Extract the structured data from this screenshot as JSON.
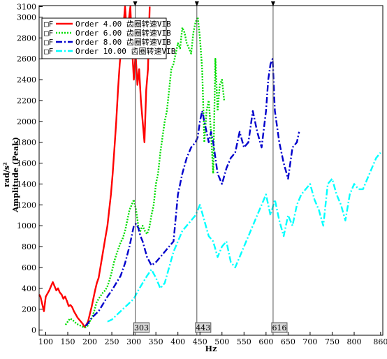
{
  "chart_data": {
    "type": "line",
    "title": "",
    "xlabel": "Hz",
    "ylabel": "Amplitude (Peak)",
    "ylabel_unit": "rad/s²",
    "xlim": [
      85,
      865
    ],
    "ylim": [
      -50,
      3110
    ],
    "x_ticks": [
      100,
      150,
      200,
      250,
      300,
      350,
      400,
      450,
      500,
      550,
      600,
      650,
      700,
      750,
      800,
      860
    ],
    "y_ticks": [
      0,
      200,
      400,
      600,
      800,
      1000,
      1200,
      1400,
      1600,
      1800,
      2000,
      2200,
      2400,
      2600,
      2800,
      3000,
      3100
    ],
    "grid": false,
    "legend_position": "top-left",
    "cursors": [
      {
        "x": 303,
        "label": "303"
      },
      {
        "x": 443,
        "label": "443"
      },
      {
        "x": 616,
        "label": "616"
      }
    ],
    "series": [
      {
        "name": "Order 4.00 齿圈转速VIB",
        "legend_prefix": "□F",
        "color": "#ff0000",
        "dash": "solid",
        "x": [
          85,
          88,
          92,
          96,
          100,
          104,
          108,
          112,
          116,
          120,
          124,
          128,
          132,
          136,
          140,
          144,
          148,
          152,
          156,
          160,
          164,
          168,
          172,
          176,
          180,
          184,
          188,
          192,
          196,
          200,
          204,
          208,
          212,
          216,
          220,
          224,
          228,
          232,
          236,
          240,
          244,
          248,
          252,
          256,
          260,
          264,
          268,
          272,
          276,
          280,
          284,
          288,
          292,
          296,
          300,
          304,
          308,
          312,
          316,
          320,
          324,
          328,
          332,
          336
        ],
        "y": [
          340,
          320,
          250,
          180,
          320,
          350,
          380,
          420,
          460,
          420,
          380,
          400,
          360,
          340,
          300,
          320,
          280,
          230,
          240,
          220,
          180,
          150,
          120,
          100,
          80,
          60,
          30,
          50,
          80,
          150,
          220,
          300,
          380,
          450,
          500,
          600,
          700,
          800,
          900,
          1000,
          1150,
          1300,
          1500,
          1750,
          2000,
          2300,
          2550,
          2750,
          2900,
          3100,
          2850,
          2950,
          3100,
          2700,
          2400,
          2650,
          2350,
          2500,
          2200,
          2000,
          1800,
          2300,
          2500,
          3100
        ]
      },
      {
        "name": "Order 6.00 齿圈转速VIB",
        "legend_prefix": "□F",
        "color": "#00dd00",
        "dash": "dotted",
        "x": [
          145,
          150,
          155,
          160,
          165,
          170,
          175,
          180,
          185,
          190,
          195,
          200,
          205,
          210,
          215,
          220,
          225,
          230,
          235,
          240,
          245,
          250,
          255,
          260,
          265,
          270,
          275,
          280,
          285,
          290,
          295,
          300,
          305,
          310,
          315,
          320,
          325,
          330,
          335,
          340,
          345,
          350,
          355,
          360,
          365,
          370,
          375,
          380,
          385,
          390,
          395,
          400,
          405,
          410,
          415,
          420,
          425,
          430,
          435,
          440,
          445,
          450,
          455,
          460,
          465,
          470,
          475,
          480,
          485,
          490,
          495,
          500,
          505
        ],
        "y": [
          50,
          80,
          110,
          100,
          80,
          60,
          50,
          40,
          30,
          25,
          40,
          80,
          120,
          180,
          260,
          300,
          330,
          360,
          380,
          420,
          480,
          560,
          650,
          720,
          780,
          840,
          880,
          950,
          1050,
          1150,
          1200,
          1250,
          1150,
          1000,
          950,
          1000,
          950,
          920,
          980,
          1100,
          1200,
          1400,
          1500,
          1700,
          1850,
          2000,
          2100,
          2300,
          2500,
          2550,
          2650,
          2750,
          2700,
          2900,
          2850,
          2750,
          2700,
          2650,
          2850,
          2950,
          3000,
          2800,
          2500,
          1800,
          2100,
          2200,
          1900,
          1500,
          2600,
          2100,
          2350,
          2400,
          2200
        ]
      },
      {
        "name": "Order 8.00 齿圈转速VIB",
        "legend_prefix": "□F",
        "color": "#0000cc",
        "dash": "dashdot",
        "x": [
          190,
          195,
          200,
          205,
          210,
          220,
          230,
          240,
          250,
          260,
          270,
          280,
          290,
          295,
          300,
          305,
          310,
          315,
          320,
          330,
          340,
          350,
          360,
          370,
          380,
          390,
          400,
          410,
          420,
          430,
          440,
          445,
          450,
          455,
          460,
          470,
          475,
          480,
          490,
          500,
          510,
          520,
          530,
          540,
          550,
          560,
          570,
          580,
          590,
          600,
          605,
          610,
          615,
          620,
          630,
          640,
          650,
          660,
          670,
          675
        ],
        "y": [
          40,
          60,
          90,
          120,
          140,
          180,
          250,
          320,
          380,
          450,
          520,
          640,
          800,
          900,
          1000,
          1020,
          980,
          900,
          850,
          700,
          620,
          650,
          700,
          750,
          800,
          850,
          1300,
          1500,
          1650,
          1750,
          1800,
          1850,
          2000,
          2100,
          2000,
          1800,
          1900,
          1800,
          1500,
          1400,
          1550,
          1650,
          1700,
          1900,
          1750,
          1800,
          2100,
          1900,
          1750,
          2100,
          2400,
          2550,
          2600,
          2100,
          1800,
          1600,
          1450,
          1750,
          1800,
          1900
        ]
      },
      {
        "name": "Order 10.00 齿圈转速VIB",
        "legend_prefix": "□F",
        "color": "#00ffff",
        "dash": "dashdot",
        "x": [
          240,
          250,
          260,
          270,
          280,
          290,
          300,
          310,
          320,
          330,
          340,
          350,
          360,
          370,
          380,
          390,
          400,
          410,
          420,
          430,
          440,
          445,
          450,
          460,
          470,
          480,
          490,
          500,
          510,
          520,
          530,
          540,
          550,
          560,
          570,
          580,
          590,
          600,
          610,
          620,
          630,
          640,
          650,
          660,
          670,
          680,
          690,
          700,
          710,
          720,
          730,
          740,
          750,
          760,
          770,
          780,
          790,
          800,
          810,
          820,
          830,
          840,
          850,
          860
        ],
        "y": [
          80,
          100,
          140,
          180,
          220,
          260,
          300,
          380,
          450,
          520,
          580,
          500,
          400,
          450,
          600,
          750,
          850,
          950,
          1000,
          1050,
          1100,
          1150,
          1200,
          1050,
          900,
          850,
          700,
          800,
          850,
          650,
          600,
          700,
          800,
          900,
          1000,
          1100,
          1200,
          1300,
          1100,
          1250,
          1050,
          900,
          1100,
          1000,
          1200,
          1300,
          1350,
          1400,
          1250,
          1150,
          1000,
          1400,
          1450,
          1300,
          1200,
          1050,
          1300,
          1400,
          1350,
          1350,
          1450,
          1550,
          1650,
          1700
        ]
      }
    ]
  }
}
